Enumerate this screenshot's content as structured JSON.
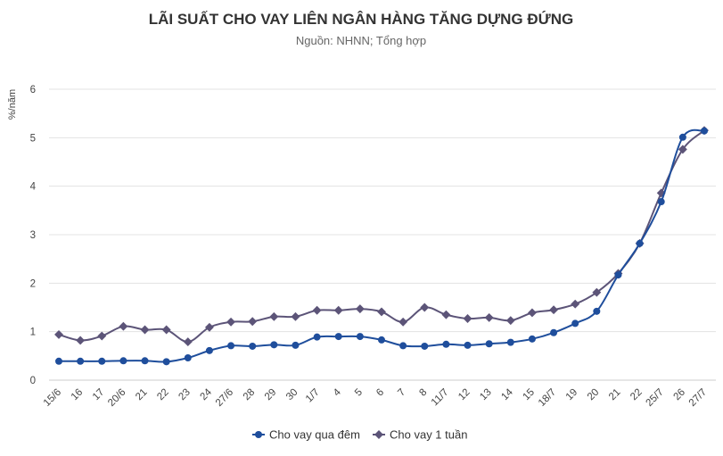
{
  "chart_data": {
    "type": "line",
    "title": "LÃI SUẤT CHO VAY LIÊN NGÂN HÀNG TĂNG DỰNG ĐỨNG",
    "subtitle": "Nguồn: NHNN; Tổng hợp",
    "ylabel": "%/năm",
    "xlabel": "",
    "ylim": [
      0,
      6
    ],
    "yticks": [
      "0",
      "1",
      "2",
      "3",
      "4",
      "5",
      "6"
    ],
    "grid": true,
    "legend": "bottom",
    "categories": [
      "15/6",
      "16",
      "17",
      "20/6",
      "21",
      "22",
      "23",
      "24",
      "27/6",
      "28",
      "29",
      "30",
      "1/7",
      "4",
      "5",
      "6",
      "7",
      "8",
      "11/7",
      "12",
      "13",
      "14",
      "15",
      "18/7",
      "19",
      "20",
      "21",
      "22",
      "25/7",
      "26",
      "27/7"
    ],
    "series": [
      {
        "name": "Cho vay qua đêm",
        "color": "#1f4e9c",
        "marker": "circle",
        "values": [
          0.39,
          0.39,
          0.39,
          0.4,
          0.4,
          0.38,
          0.46,
          0.61,
          0.71,
          0.7,
          0.73,
          0.72,
          0.89,
          0.9,
          0.9,
          0.83,
          0.71,
          0.7,
          0.74,
          0.72,
          0.75,
          0.78,
          0.85,
          0.98,
          1.17,
          1.42,
          2.17,
          2.82,
          3.68,
          5.01,
          5.14
        ]
      },
      {
        "name": "Cho vay 1 tuần",
        "color": "#5c5478",
        "marker": "diamond",
        "values": [
          0.94,
          0.82,
          0.91,
          1.11,
          1.04,
          1.04,
          0.79,
          1.09,
          1.2,
          1.21,
          1.31,
          1.31,
          1.44,
          1.44,
          1.47,
          1.41,
          1.2,
          1.5,
          1.35,
          1.27,
          1.29,
          1.23,
          1.39,
          1.45,
          1.57,
          1.81,
          2.2,
          2.82,
          3.86,
          4.76,
          5.15
        ]
      }
    ]
  }
}
